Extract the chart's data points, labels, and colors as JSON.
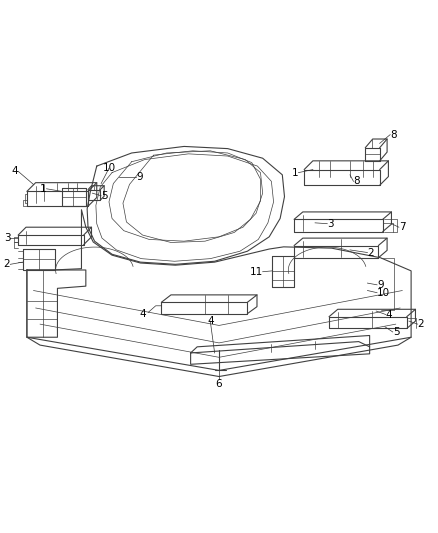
{
  "background_color": "#ffffff",
  "line_color": "#404040",
  "label_color": "#000000",
  "figsize": [
    4.38,
    5.33
  ],
  "dpi": 100,
  "lw_main": 0.8,
  "lw_thin": 0.5,
  "lw_thick": 1.2,
  "fontsize": 7.5
}
